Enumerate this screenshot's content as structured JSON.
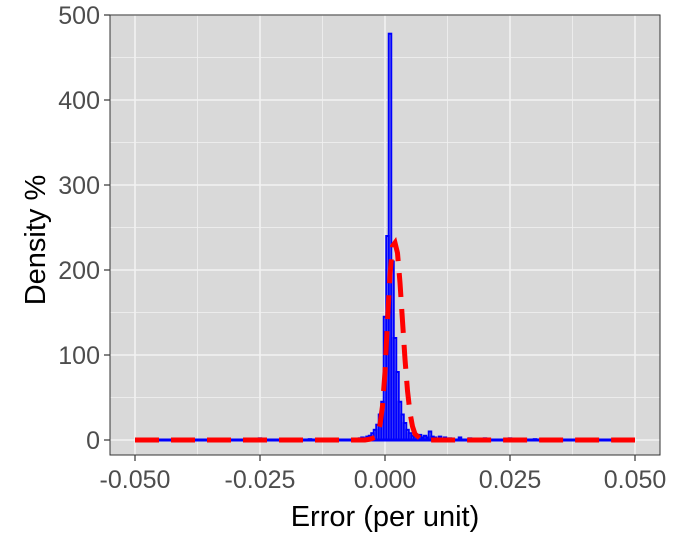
{
  "chart_data": {
    "type": "histogram",
    "xlabel": "Error (per unit)",
    "ylabel": "Density %",
    "xlim": [
      -0.05,
      0.05
    ],
    "ylim": [
      0,
      500
    ],
    "x_ticks": [
      -0.05,
      -0.025,
      0.0,
      0.025,
      0.05
    ],
    "x_tick_labels": [
      "-0.050",
      "-0.025",
      "0.000",
      "0.025",
      "0.050"
    ],
    "y_ticks": [
      0,
      100,
      200,
      300,
      400,
      500
    ],
    "y_tick_labels": [
      "0",
      "100",
      "200",
      "300",
      "400",
      "500"
    ],
    "grid": true,
    "background_color": "#d9d9d9",
    "grid_color": "#f2f2f2",
    "histogram": {
      "color": "#0000ff",
      "bin_width": 0.0005,
      "bins": [
        {
          "x": -0.005,
          "y": 2
        },
        {
          "x": -0.0045,
          "y": 3
        },
        {
          "x": -0.004,
          "y": 2
        },
        {
          "x": -0.0035,
          "y": 4
        },
        {
          "x": -0.003,
          "y": 5
        },
        {
          "x": -0.0025,
          "y": 8
        },
        {
          "x": -0.002,
          "y": 12
        },
        {
          "x": -0.0015,
          "y": 18
        },
        {
          "x": -0.001,
          "y": 30
        },
        {
          "x": -0.0005,
          "y": 45
        },
        {
          "x": 0.0,
          "y": 145
        },
        {
          "x": 0.0005,
          "y": 240
        },
        {
          "x": 0.001,
          "y": 478
        },
        {
          "x": 0.0015,
          "y": 210
        },
        {
          "x": 0.002,
          "y": 120
        },
        {
          "x": 0.0025,
          "y": 80
        },
        {
          "x": 0.003,
          "y": 45
        },
        {
          "x": 0.0035,
          "y": 30
        },
        {
          "x": 0.004,
          "y": 20
        },
        {
          "x": 0.0045,
          "y": 12
        },
        {
          "x": 0.005,
          "y": 8
        },
        {
          "x": 0.0055,
          "y": 5
        },
        {
          "x": 0.006,
          "y": 4
        },
        {
          "x": 0.0065,
          "y": 3
        },
        {
          "x": 0.007,
          "y": 6
        },
        {
          "x": 0.0075,
          "y": 3
        },
        {
          "x": 0.008,
          "y": 5
        },
        {
          "x": 0.0085,
          "y": 3
        },
        {
          "x": 0.009,
          "y": 10
        },
        {
          "x": 0.0095,
          "y": 4
        },
        {
          "x": 0.01,
          "y": 3
        },
        {
          "x": 0.011,
          "y": 4
        },
        {
          "x": 0.012,
          "y": 3
        },
        {
          "x": 0.013,
          "y": 2
        },
        {
          "x": 0.015,
          "y": 3
        },
        {
          "x": 0.017,
          "y": 2
        },
        {
          "x": 0.02,
          "y": 2
        },
        {
          "x": 0.025,
          "y": 2
        },
        {
          "x": 0.03,
          "y": 1
        },
        {
          "x": 0.035,
          "y": 1
        },
        {
          "x": -0.01,
          "y": 1
        },
        {
          "x": -0.015,
          "y": 1
        },
        {
          "x": -0.025,
          "y": 2
        },
        {
          "x": -0.035,
          "y": 1
        }
      ]
    },
    "fitted_curve": {
      "color": "#ff0000",
      "style": "dashed",
      "points": [
        [
          -0.05,
          0
        ],
        [
          -0.01,
          0
        ],
        [
          -0.004,
          0
        ],
        [
          -0.003,
          1
        ],
        [
          -0.002,
          3
        ],
        [
          -0.0015,
          8
        ],
        [
          -0.001,
          18
        ],
        [
          -0.0005,
          40
        ],
        [
          0.0,
          80
        ],
        [
          0.0005,
          140
        ],
        [
          0.001,
          195
        ],
        [
          0.0015,
          228
        ],
        [
          0.002,
          232
        ],
        [
          0.0025,
          220
        ],
        [
          0.003,
          185
        ],
        [
          0.0035,
          140
        ],
        [
          0.004,
          95
        ],
        [
          0.0045,
          58
        ],
        [
          0.005,
          32
        ],
        [
          0.0055,
          16
        ],
        [
          0.006,
          7
        ],
        [
          0.007,
          2
        ],
        [
          0.008,
          0
        ],
        [
          0.012,
          0
        ],
        [
          0.05,
          0
        ]
      ]
    }
  }
}
